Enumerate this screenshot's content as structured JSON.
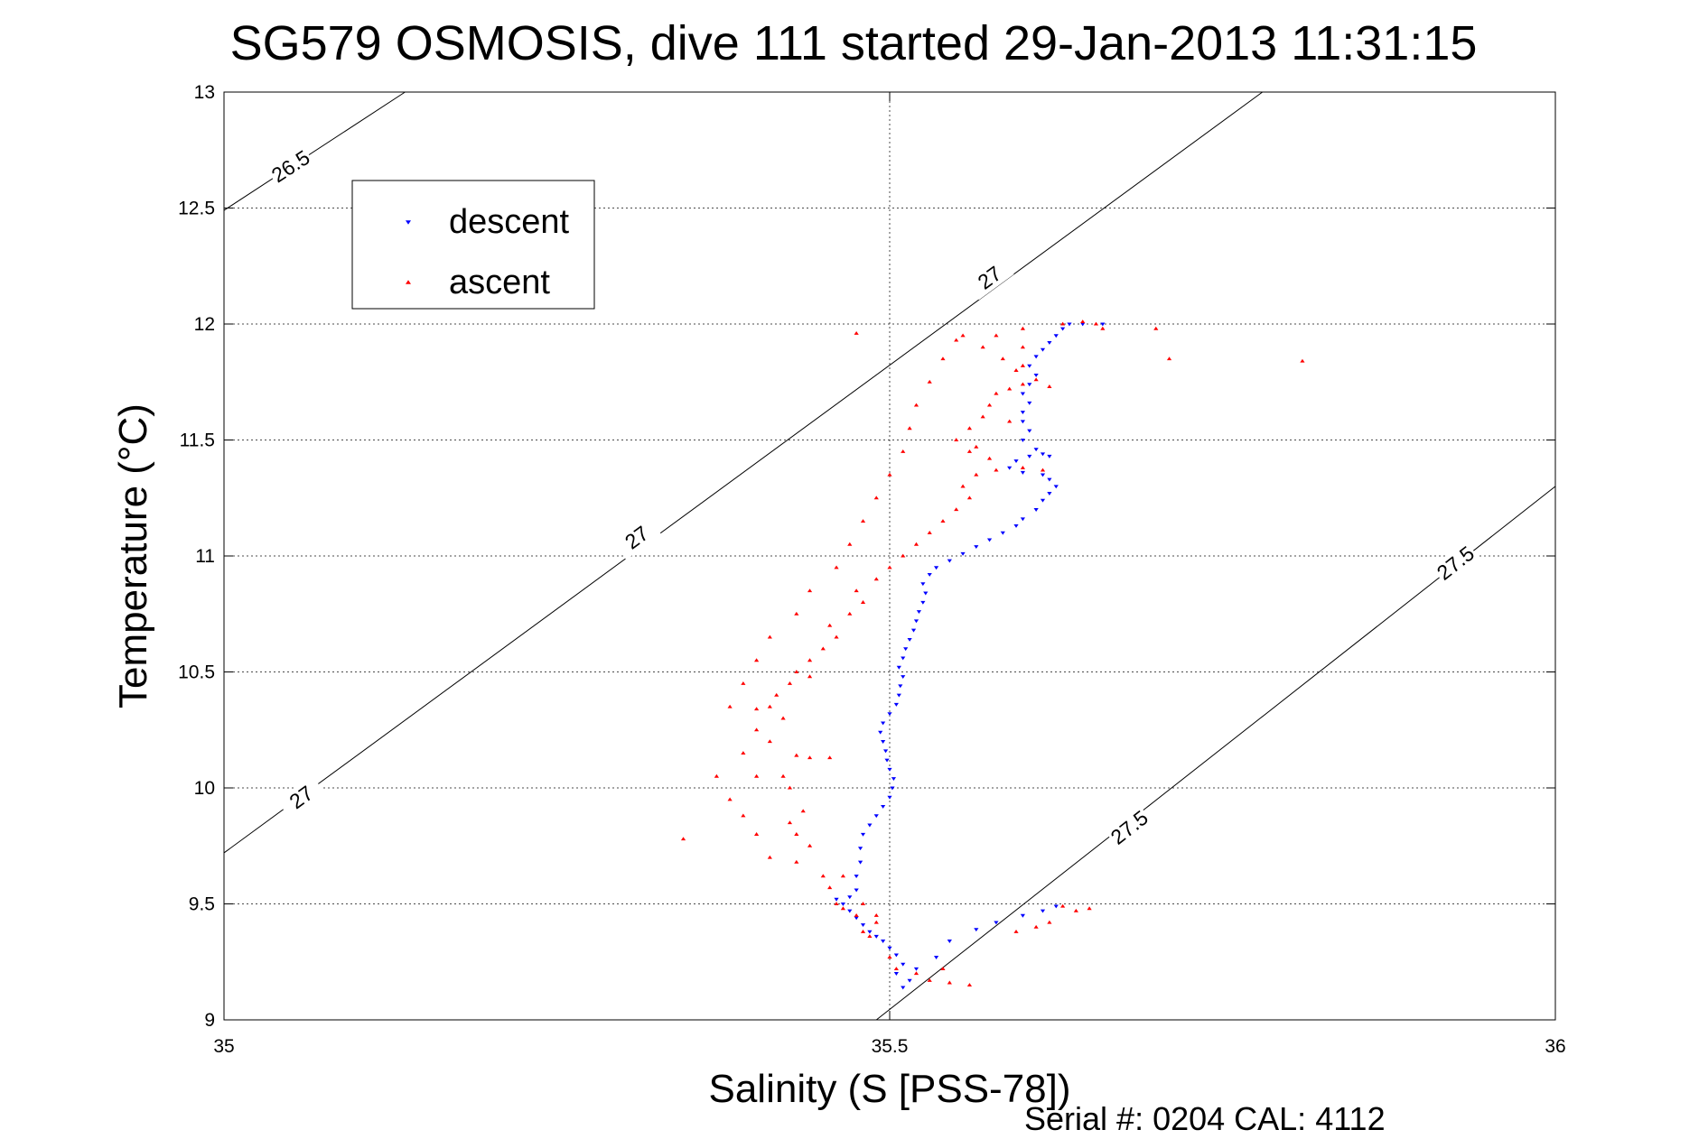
{
  "chart_data": {
    "type": "scatter",
    "title": "SG579 OSMOSIS, dive 111 started 29-Jan-2013 11:31:15",
    "xlabel": "Salinity (S [PSS-78])",
    "ylabel": "Temperature (°C)",
    "xlim": [
      35,
      36
    ],
    "ylim": [
      9,
      13
    ],
    "x_ticks": [
      "35",
      "35.5",
      "36"
    ],
    "y_ticks": [
      "9",
      "9.5",
      "10",
      "10.5",
      "11",
      "11.5",
      "12",
      "12.5",
      "13"
    ],
    "grid": true,
    "legend_position": "top-left",
    "colors": {
      "descent": "#0000ff",
      "ascent": "#ff0000",
      "contour": "#000000"
    },
    "contours": [
      {
        "label": "26.5",
        "points": [
          [
            35.0,
            12.49
          ],
          [
            35.136,
            13.0
          ]
        ],
        "label_at": [
          [
            35.05,
            12.68
          ]
        ]
      },
      {
        "label": "27",
        "points": [
          [
            35.0,
            9.72
          ],
          [
            35.78,
            13.0
          ]
        ],
        "label_at": [
          [
            35.058,
            9.96
          ],
          [
            35.31,
            11.08
          ],
          [
            35.575,
            12.2
          ]
        ]
      },
      {
        "label": "27.5",
        "points": [
          [
            35.49,
            9.0
          ],
          [
            36.0,
            11.3
          ]
        ],
        "label_at": [
          [
            35.68,
            9.83
          ],
          [
            35.925,
            10.97
          ]
        ]
      }
    ],
    "series": [
      {
        "name": "descent",
        "marker": "triangle-down",
        "points": [
          [
            35.51,
            9.14
          ],
          [
            35.515,
            9.17
          ],
          [
            35.505,
            9.2
          ],
          [
            35.51,
            9.24
          ],
          [
            35.505,
            9.28
          ],
          [
            35.5,
            9.31
          ],
          [
            35.495,
            9.34
          ],
          [
            35.49,
            9.36
          ],
          [
            35.485,
            9.38
          ],
          [
            35.48,
            9.41
          ],
          [
            35.475,
            9.44
          ],
          [
            35.47,
            9.47
          ],
          [
            35.465,
            9.5
          ],
          [
            35.46,
            9.52
          ],
          [
            35.47,
            9.53
          ],
          [
            35.475,
            9.56
          ],
          [
            35.475,
            9.62
          ],
          [
            35.478,
            9.68
          ],
          [
            35.478,
            9.74
          ],
          [
            35.48,
            9.8
          ],
          [
            35.485,
            9.84
          ],
          [
            35.49,
            9.88
          ],
          [
            35.495,
            9.92
          ],
          [
            35.5,
            9.96
          ],
          [
            35.502,
            10.0
          ],
          [
            35.503,
            10.04
          ],
          [
            35.5,
            10.08
          ],
          [
            35.498,
            10.12
          ],
          [
            35.497,
            10.16
          ],
          [
            35.495,
            10.2
          ],
          [
            35.493,
            10.24
          ],
          [
            35.495,
            10.28
          ],
          [
            35.5,
            10.32
          ],
          [
            35.505,
            10.36
          ],
          [
            35.507,
            10.4
          ],
          [
            35.508,
            10.44
          ],
          [
            35.51,
            10.48
          ],
          [
            35.507,
            10.52
          ],
          [
            35.51,
            10.56
          ],
          [
            35.512,
            10.6
          ],
          [
            35.515,
            10.64
          ],
          [
            35.518,
            10.68
          ],
          [
            35.52,
            10.72
          ],
          [
            35.522,
            10.76
          ],
          [
            35.525,
            10.8
          ],
          [
            35.527,
            10.84
          ],
          [
            35.525,
            10.88
          ],
          [
            35.53,
            10.92
          ],
          [
            35.535,
            10.95
          ],
          [
            35.545,
            10.98
          ],
          [
            35.555,
            11.01
          ],
          [
            35.565,
            11.04
          ],
          [
            35.575,
            11.07
          ],
          [
            35.585,
            11.1
          ],
          [
            35.595,
            11.13
          ],
          [
            35.6,
            11.16
          ],
          [
            35.61,
            11.2
          ],
          [
            35.615,
            11.24
          ],
          [
            35.62,
            11.27
          ],
          [
            35.625,
            11.3
          ],
          [
            35.62,
            11.33
          ],
          [
            35.615,
            11.35
          ],
          [
            35.6,
            11.36
          ],
          [
            35.59,
            11.38
          ],
          [
            35.595,
            11.41
          ],
          [
            35.605,
            11.43
          ],
          [
            35.615,
            11.44
          ],
          [
            35.62,
            11.43
          ],
          [
            35.61,
            11.46
          ],
          [
            35.6,
            11.5
          ],
          [
            35.605,
            11.54
          ],
          [
            35.6,
            11.58
          ],
          [
            35.6,
            11.62
          ],
          [
            35.605,
            11.66
          ],
          [
            35.6,
            11.7
          ],
          [
            35.605,
            11.74
          ],
          [
            35.61,
            11.78
          ],
          [
            35.605,
            11.82
          ],
          [
            35.61,
            11.86
          ],
          [
            35.615,
            11.89
          ],
          [
            35.62,
            11.92
          ],
          [
            35.625,
            11.95
          ],
          [
            35.63,
            11.98
          ],
          [
            35.635,
            12.0
          ],
          [
            35.645,
            12.0
          ],
          [
            35.66,
            12.0
          ],
          [
            35.58,
            9.42
          ],
          [
            35.6,
            9.45
          ],
          [
            35.615,
            9.47
          ],
          [
            35.625,
            9.49
          ],
          [
            35.565,
            9.39
          ],
          [
            35.545,
            9.34
          ],
          [
            35.535,
            9.27
          ],
          [
            35.52,
            9.22
          ]
        ]
      },
      {
        "name": "ascent",
        "marker": "triangle-up",
        "points": [
          [
            35.53,
            9.17
          ],
          [
            35.52,
            9.2
          ],
          [
            35.545,
            9.16
          ],
          [
            35.54,
            9.22
          ],
          [
            35.505,
            9.22
          ],
          [
            35.5,
            9.27
          ],
          [
            35.485,
            9.36
          ],
          [
            35.48,
            9.38
          ],
          [
            35.49,
            9.42
          ],
          [
            35.475,
            9.45
          ],
          [
            35.465,
            9.48
          ],
          [
            35.46,
            9.5
          ],
          [
            35.455,
            9.57
          ],
          [
            35.465,
            9.62
          ],
          [
            35.48,
            9.5
          ],
          [
            35.49,
            9.45
          ],
          [
            35.44,
            9.75
          ],
          [
            35.43,
            9.8
          ],
          [
            35.425,
            9.85
          ],
          [
            35.435,
            9.9
          ],
          [
            35.425,
            10.0
          ],
          [
            35.42,
            10.05
          ],
          [
            35.43,
            10.14
          ],
          [
            35.44,
            10.13
          ],
          [
            35.455,
            10.13
          ],
          [
            35.41,
            10.2
          ],
          [
            35.42,
            10.3
          ],
          [
            35.41,
            10.35
          ],
          [
            35.415,
            10.4
          ],
          [
            35.425,
            10.45
          ],
          [
            35.43,
            10.5
          ],
          [
            35.44,
            10.55
          ],
          [
            35.45,
            10.6
          ],
          [
            35.46,
            10.65
          ],
          [
            35.455,
            10.7
          ],
          [
            35.47,
            10.75
          ],
          [
            35.48,
            10.8
          ],
          [
            35.475,
            10.85
          ],
          [
            35.49,
            10.9
          ],
          [
            35.5,
            10.95
          ],
          [
            35.51,
            11.0
          ],
          [
            35.52,
            11.05
          ],
          [
            35.53,
            11.1
          ],
          [
            35.54,
            11.15
          ],
          [
            35.55,
            11.2
          ],
          [
            35.56,
            11.25
          ],
          [
            35.555,
            11.3
          ],
          [
            35.565,
            11.35
          ],
          [
            35.58,
            11.37
          ],
          [
            35.6,
            11.38
          ],
          [
            35.615,
            11.37
          ],
          [
            35.575,
            11.42
          ],
          [
            35.56,
            11.45
          ],
          [
            35.55,
            11.5
          ],
          [
            35.56,
            11.55
          ],
          [
            35.57,
            11.6
          ],
          [
            35.575,
            11.65
          ],
          [
            35.58,
            11.7
          ],
          [
            35.59,
            11.72
          ],
          [
            35.6,
            11.74
          ],
          [
            35.61,
            11.76
          ],
          [
            35.595,
            11.8
          ],
          [
            35.585,
            11.85
          ],
          [
            35.6,
            11.9
          ],
          [
            35.58,
            11.95
          ],
          [
            35.6,
            11.98
          ],
          [
            35.63,
            12.0
          ],
          [
            35.645,
            12.01
          ],
          [
            35.655,
            12.0
          ],
          [
            35.66,
            11.98
          ],
          [
            35.555,
            11.95
          ],
          [
            35.57,
            11.9
          ],
          [
            35.54,
            11.85
          ],
          [
            35.53,
            11.75
          ],
          [
            35.52,
            11.65
          ],
          [
            35.515,
            11.55
          ],
          [
            35.51,
            11.45
          ],
          [
            35.5,
            11.35
          ],
          [
            35.49,
            11.25
          ],
          [
            35.48,
            11.15
          ],
          [
            35.47,
            11.05
          ],
          [
            35.46,
            10.95
          ],
          [
            35.44,
            10.85
          ],
          [
            35.43,
            10.75
          ],
          [
            35.41,
            10.65
          ],
          [
            35.4,
            10.55
          ],
          [
            35.39,
            10.45
          ],
          [
            35.38,
            10.35
          ],
          [
            35.4,
            10.25
          ],
          [
            35.39,
            10.15
          ],
          [
            35.37,
            10.05
          ],
          [
            35.38,
            9.95
          ],
          [
            35.39,
            9.88
          ],
          [
            35.4,
            9.8
          ],
          [
            35.41,
            9.7
          ],
          [
            35.43,
            9.68
          ],
          [
            35.45,
            9.62
          ],
          [
            35.65,
            9.48
          ],
          [
            35.64,
            9.47
          ],
          [
            35.62,
            9.42
          ],
          [
            35.61,
            9.4
          ],
          [
            35.595,
            9.38
          ],
          [
            35.63,
            9.49
          ],
          [
            35.56,
            9.15
          ],
          [
            35.345,
            9.78
          ],
          [
            35.4,
            10.05
          ],
          [
            35.4,
            10.34
          ],
          [
            35.44,
            10.48
          ],
          [
            35.7,
            11.98
          ],
          [
            35.71,
            11.85
          ],
          [
            35.81,
            11.84
          ],
          [
            35.565,
            11.47
          ],
          [
            35.59,
            11.58
          ],
          [
            35.62,
            11.73
          ],
          [
            35.6,
            11.82
          ],
          [
            35.55,
            11.93
          ],
          [
            35.475,
            11.96
          ]
        ]
      }
    ]
  },
  "footer": {
    "serial_text": "Serial #: 0204  CAL: 4112"
  }
}
